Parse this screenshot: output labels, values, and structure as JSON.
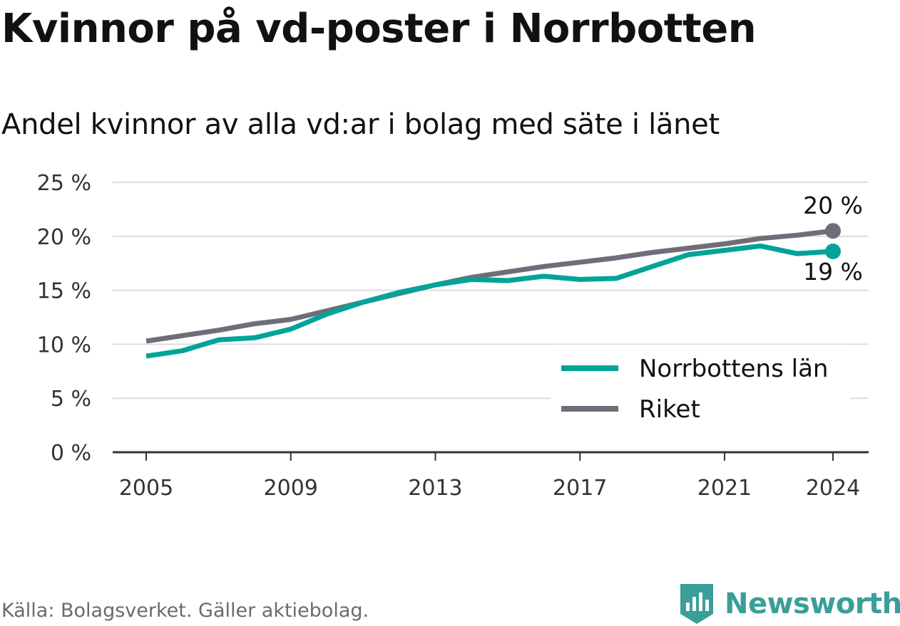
{
  "title": "Kvinnor på vd-poster i Norrbotten",
  "subtitle": "Andel kvinnor av alla vd:ar i bolag med säte i länet",
  "source": "Källa: Bolagsverket. Gäller aktiebolag.",
  "brand": {
    "name": "Newsworthy",
    "color": "#3a9e99"
  },
  "chart_data": {
    "type": "line",
    "x": [
      2005,
      2006,
      2007,
      2008,
      2009,
      2010,
      2011,
      2012,
      2013,
      2014,
      2015,
      2016,
      2017,
      2018,
      2019,
      2020,
      2021,
      2022,
      2023,
      2024
    ],
    "series": [
      {
        "name": "Norrbottens län",
        "color": "#00a498",
        "values": [
          8.9,
          9.4,
          10.4,
          10.6,
          11.4,
          12.8,
          13.9,
          14.8,
          15.5,
          16.0,
          15.9,
          16.3,
          16.0,
          16.1,
          17.2,
          18.3,
          18.7,
          19.1,
          18.4,
          18.6
        ],
        "end_label": "19 %"
      },
      {
        "name": "Riket",
        "color": "#6f6e78",
        "values": [
          10.3,
          10.8,
          11.3,
          11.9,
          12.3,
          13.1,
          13.9,
          14.7,
          15.5,
          16.2,
          16.7,
          17.2,
          17.6,
          18.0,
          18.5,
          18.9,
          19.3,
          19.8,
          20.1,
          20.5
        ],
        "end_label": "20 %"
      }
    ],
    "x_ticks": [
      "2005",
      "2009",
      "2013",
      "2017",
      "2021",
      "2024"
    ],
    "y_ticks": [
      "0 %",
      "5 %",
      "10 %",
      "15 %",
      "20 %",
      "25 %"
    ],
    "ylim": [
      0,
      25
    ],
    "xlim": [
      2005,
      2024
    ],
    "grid": true,
    "legend_position": "bottom-right",
    "axis_color": "#333333",
    "grid_color": "#dddddd"
  }
}
